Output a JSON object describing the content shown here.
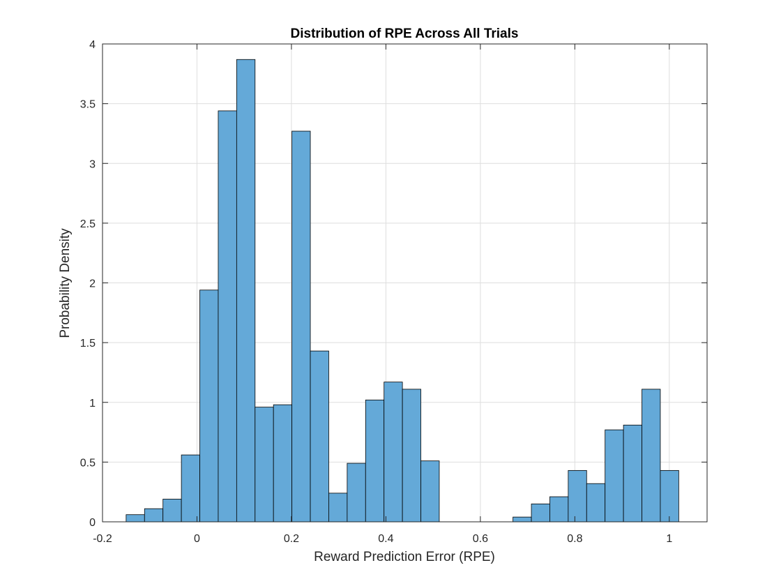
{
  "chart_data": {
    "type": "bar",
    "title": "Distribution of RPE Across All Trials",
    "xlabel": "Reward Prediction Error (RPE)",
    "ylabel": "Probability Density",
    "xlim": [
      -0.2,
      1.08
    ],
    "ylim": [
      0,
      4
    ],
    "xticks": [
      -0.2,
      0,
      0.2,
      0.4,
      0.6,
      0.8,
      1
    ],
    "xtick_labels": [
      "-0.2",
      "0",
      "0.2",
      "0.4",
      "0.6",
      "0.8",
      "1"
    ],
    "yticks": [
      0,
      0.5,
      1,
      1.5,
      2,
      2.5,
      3,
      3.5,
      4
    ],
    "ytick_labels": [
      "0",
      "0.5",
      "1",
      "1.5",
      "2",
      "2.5",
      "3",
      "3.5",
      "4"
    ],
    "grid": true,
    "bar_color": "#64a9d8",
    "bar_edge_color": "#000000",
    "bins": [
      {
        "x0": -0.15,
        "x1": -0.111,
        "value": 0.06
      },
      {
        "x0": -0.111,
        "x1": -0.072,
        "value": 0.11
      },
      {
        "x0": -0.072,
        "x1": -0.033,
        "value": 0.19
      },
      {
        "x0": -0.033,
        "x1": 0.006,
        "value": 0.56
      },
      {
        "x0": 0.006,
        "x1": 0.045,
        "value": 1.94
      },
      {
        "x0": 0.045,
        "x1": 0.084,
        "value": 3.44
      },
      {
        "x0": 0.084,
        "x1": 0.123,
        "value": 3.87
      },
      {
        "x0": 0.123,
        "x1": 0.162,
        "value": 0.96
      },
      {
        "x0": 0.162,
        "x1": 0.201,
        "value": 0.98
      },
      {
        "x0": 0.201,
        "x1": 0.24,
        "value": 3.27
      },
      {
        "x0": 0.24,
        "x1": 0.279,
        "value": 1.43
      },
      {
        "x0": 0.279,
        "x1": 0.318,
        "value": 0.24
      },
      {
        "x0": 0.318,
        "x1": 0.357,
        "value": 0.49
      },
      {
        "x0": 0.357,
        "x1": 0.396,
        "value": 1.02
      },
      {
        "x0": 0.396,
        "x1": 0.435,
        "value": 1.17
      },
      {
        "x0": 0.435,
        "x1": 0.474,
        "value": 1.11
      },
      {
        "x0": 0.474,
        "x1": 0.513,
        "value": 0.51
      },
      {
        "x0": 0.669,
        "x1": 0.708,
        "value": 0.04
      },
      {
        "x0": 0.708,
        "x1": 0.747,
        "value": 0.15
      },
      {
        "x0": 0.747,
        "x1": 0.786,
        "value": 0.21
      },
      {
        "x0": 0.786,
        "x1": 0.825,
        "value": 0.43
      },
      {
        "x0": 0.825,
        "x1": 0.864,
        "value": 0.32
      },
      {
        "x0": 0.864,
        "x1": 0.903,
        "value": 0.77
      },
      {
        "x0": 0.903,
        "x1": 0.942,
        "value": 0.81
      },
      {
        "x0": 0.942,
        "x1": 0.981,
        "value": 1.11
      },
      {
        "x0": 0.981,
        "x1": 1.02,
        "value": 0.43
      }
    ]
  }
}
